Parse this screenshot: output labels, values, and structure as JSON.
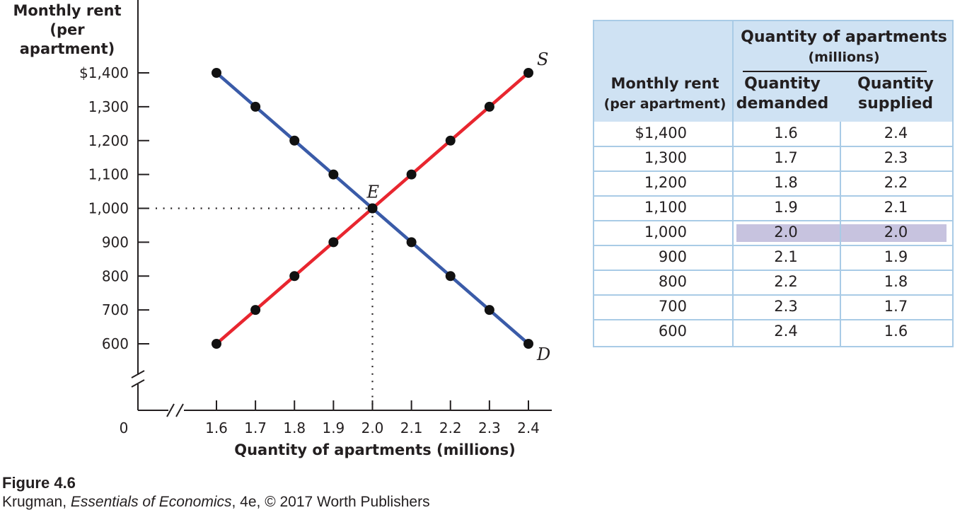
{
  "chart_data": {
    "type": "line",
    "ylabel": [
      "Monthly rent",
      "(per apartment)"
    ],
    "xlabel": "Quantity of apartments (millions)",
    "y_ticks": [
      "$1,400",
      "1,300",
      "1,200",
      "1,100",
      "1,000",
      "900",
      "800",
      "700",
      "600"
    ],
    "y_tick_values": [
      1400,
      1300,
      1200,
      1100,
      1000,
      900,
      800,
      700,
      600
    ],
    "x_ticks": [
      "1.6",
      "1.7",
      "1.8",
      "1.9",
      "2.0",
      "2.1",
      "2.2",
      "2.3",
      "2.4"
    ],
    "x_tick_values": [
      1.6,
      1.7,
      1.8,
      1.9,
      2.0,
      2.1,
      2.2,
      2.3,
      2.4
    ],
    "origin_label": "0",
    "xlim": [
      1.6,
      2.4
    ],
    "ylim": [
      600,
      1400
    ],
    "axis_break": true,
    "series": [
      {
        "name": "D",
        "color": "#3a5ba8",
        "x": [
          1.6,
          1.7,
          1.8,
          1.9,
          2.0,
          2.1,
          2.2,
          2.3,
          2.4
        ],
        "y": [
          1400,
          1300,
          1200,
          1100,
          1000,
          900,
          800,
          700,
          600
        ]
      },
      {
        "name": "S",
        "color": "#e8262f",
        "x": [
          1.6,
          1.7,
          1.8,
          1.9,
          2.0,
          2.1,
          2.2,
          2.3,
          2.4
        ],
        "y": [
          600,
          700,
          800,
          900,
          1000,
          1100,
          1200,
          1300,
          1400
        ]
      }
    ],
    "equilibrium": {
      "label": "E",
      "x": 2.0,
      "y": 1000
    },
    "point_color": "#111111"
  },
  "table": {
    "group_header": [
      "Quantity of apartments",
      "(millions)"
    ],
    "col1_header": [
      "Monthly rent",
      "(per apartment)"
    ],
    "col2_header": [
      "Quantity",
      "demanded"
    ],
    "col3_header": [
      "Quantity",
      "supplied"
    ],
    "rows": [
      {
        "rent": "$1,400",
        "demanded": "1.6",
        "supplied": "2.4"
      },
      {
        "rent": "1,300",
        "demanded": "1.7",
        "supplied": "2.3"
      },
      {
        "rent": "1,200",
        "demanded": "1.8",
        "supplied": "2.2"
      },
      {
        "rent": "1,100",
        "demanded": "1.9",
        "supplied": "2.1"
      },
      {
        "rent": "1,000",
        "demanded": "2.0",
        "supplied": "2.0",
        "highlight": true
      },
      {
        "rent": "900",
        "demanded": "2.1",
        "supplied": "1.9"
      },
      {
        "rent": "800",
        "demanded": "2.2",
        "supplied": "1.8"
      },
      {
        "rent": "700",
        "demanded": "2.3",
        "supplied": "1.7"
      },
      {
        "rent": "600",
        "demanded": "2.4",
        "supplied": "1.6"
      }
    ],
    "header_bg": "#cfe2f3",
    "border_color": "#a9cbe6",
    "highlight_color": "#c7c3df"
  },
  "caption": {
    "figure": "Figure 4.6",
    "author": "Krugman, ",
    "book": "Essentials of Economics",
    "rest": ", 4e, © 2017 Worth Publishers"
  }
}
